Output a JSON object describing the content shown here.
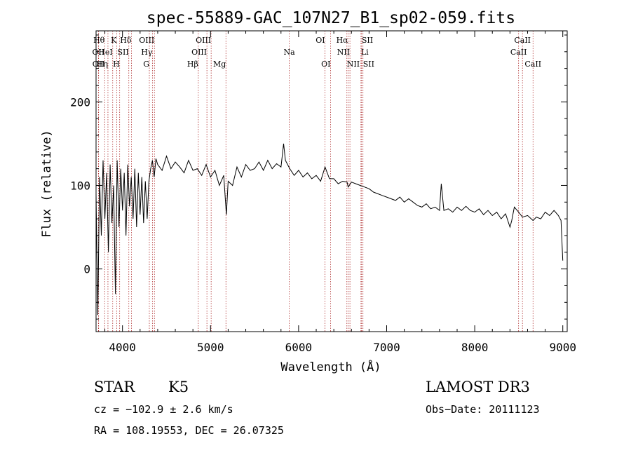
{
  "chart_data": {
    "type": "line",
    "title": "spec-55889-GAC_107N27_B1_sp02-059.fits",
    "xlabel": "Wavelength (Å)",
    "ylabel": "Flux (relative)",
    "xlim": [
      3700,
      9050
    ],
    "ylim": [
      -75,
      285
    ],
    "x_ticks": [
      4000,
      5000,
      6000,
      7000,
      8000,
      9000
    ],
    "x_tick_labels": [
      "4000",
      "5000",
      "6000",
      "7000",
      "8000",
      "9000"
    ],
    "y_ticks": [
      0,
      100,
      200
    ],
    "y_tick_labels": [
      "0",
      "100",
      "200"
    ],
    "series": [
      {
        "name": "flux",
        "x": [
          3700,
          3720,
          3740,
          3760,
          3780,
          3800,
          3820,
          3840,
          3860,
          3880,
          3900,
          3920,
          3940,
          3960,
          3980,
          4000,
          4020,
          4040,
          4060,
          4080,
          4100,
          4120,
          4140,
          4160,
          4180,
          4200,
          4220,
          4240,
          4260,
          4280,
          4300,
          4320,
          4340,
          4360,
          4380,
          4400,
          4450,
          4500,
          4550,
          4600,
          4650,
          4700,
          4750,
          4800,
          4850,
          4900,
          4950,
          5000,
          5050,
          5100,
          5150,
          5180,
          5200,
          5250,
          5300,
          5350,
          5400,
          5450,
          5500,
          5550,
          5600,
          5650,
          5700,
          5750,
          5800,
          5830,
          5850,
          5900,
          5950,
          6000,
          6050,
          6100,
          6150,
          6200,
          6250,
          6300,
          6350,
          6400,
          6450,
          6500,
          6550,
          6563,
          6600,
          6650,
          6700,
          6750,
          6800,
          6850,
          6900,
          6950,
          7000,
          7050,
          7100,
          7150,
          7200,
          7250,
          7300,
          7350,
          7400,
          7450,
          7500,
          7550,
          7600,
          7620,
          7650,
          7700,
          7750,
          7800,
          7850,
          7900,
          7950,
          8000,
          8050,
          8100,
          8150,
          8200,
          8250,
          8300,
          8350,
          8400,
          8420,
          8450,
          8498,
          8542,
          8600,
          8662,
          8700,
          8750,
          8800,
          8850,
          8900,
          8950,
          8980,
          9000
        ],
        "y": [
          90,
          -55,
          110,
          40,
          130,
          60,
          115,
          20,
          125,
          55,
          100,
          -30,
          130,
          50,
          120,
          70,
          115,
          40,
          125,
          75,
          110,
          60,
          120,
          50,
          115,
          65,
          110,
          55,
          105,
          60,
          105,
          120,
          130,
          110,
          132,
          125,
          118,
          135,
          120,
          128,
          122,
          115,
          130,
          118,
          120,
          112,
          125,
          110,
          118,
          100,
          112,
          65,
          105,
          100,
          122,
          110,
          125,
          118,
          120,
          128,
          118,
          130,
          120,
          126,
          122,
          150,
          130,
          120,
          112,
          118,
          110,
          115,
          108,
          112,
          105,
          122,
          108,
          108,
          102,
          105,
          104,
          98,
          104,
          102,
          100,
          98,
          96,
          92,
          90,
          88,
          86,
          84,
          82,
          86,
          80,
          84,
          80,
          76,
          74,
          78,
          72,
          74,
          70,
          102,
          70,
          72,
          68,
          74,
          70,
          75,
          70,
          68,
          72,
          65,
          70,
          64,
          68,
          60,
          66,
          50,
          58,
          74,
          68,
          62,
          64,
          58,
          62,
          60,
          68,
          64,
          70,
          64,
          58,
          10
        ]
      }
    ],
    "line_markers": [
      {
        "label": "Hθ",
        "wavelength": 3798,
        "row": 1,
        "ha": "right"
      },
      {
        "label": "OII",
        "wavelength": 3727,
        "row": 2,
        "ha": "center"
      },
      {
        "label": "OII",
        "wavelength": 3729,
        "row": 3,
        "ha": "center"
      },
      {
        "label": "K",
        "wavelength": 3934,
        "row": 1,
        "ha": "right"
      },
      {
        "label": "HeI",
        "wavelength": 3889,
        "row": 2,
        "ha": "right"
      },
      {
        "label": "Hη",
        "wavelength": 3835,
        "row": 3,
        "ha": "right"
      },
      {
        "label": "Hδ",
        "wavelength": 4102,
        "row": 1,
        "ha": "right"
      },
      {
        "label": "SII",
        "wavelength": 4072,
        "row": 2,
        "ha": "right"
      },
      {
        "label": "H",
        "wavelength": 3968,
        "row": 3,
        "ha": "right"
      },
      {
        "label": "OIII",
        "wavelength": 4363,
        "row": 1,
        "ha": "right"
      },
      {
        "label": "Hγ",
        "wavelength": 4340,
        "row": 2,
        "ha": "right"
      },
      {
        "label": "G",
        "wavelength": 4305,
        "row": 3,
        "ha": "right"
      },
      {
        "label": "OIII",
        "wavelength": 5007,
        "row": 1,
        "ha": "right"
      },
      {
        "label": "OIII",
        "wavelength": 4959,
        "row": 2,
        "ha": "right"
      },
      {
        "label": "Hβ",
        "wavelength": 4861,
        "row": 3,
        "ha": "right"
      },
      {
        "label": "Mg",
        "wavelength": 5175,
        "row": 3,
        "ha": "right"
      },
      {
        "label": "Na",
        "wavelength": 5894,
        "row": 2,
        "ha": "center"
      },
      {
        "label": "OI",
        "wavelength": 6300,
        "row": 1,
        "ha": "right"
      },
      {
        "label": "OI",
        "wavelength": 6363,
        "row": 3,
        "ha": "right"
      },
      {
        "label": "Hα",
        "wavelength": 6563,
        "row": 1,
        "ha": "right"
      },
      {
        "label": "NII",
        "wavelength": 6583,
        "row": 2,
        "ha": "right"
      },
      {
        "label": "NII",
        "wavelength": 6548,
        "row": 3,
        "ha": "left"
      },
      {
        "label": "SII",
        "wavelength": 6716,
        "row": 1,
        "ha": "left"
      },
      {
        "label": "Li",
        "wavelength": 6708,
        "row": 2,
        "ha": "left"
      },
      {
        "label": "SII",
        "wavelength": 6731,
        "row": 3,
        "ha": "left"
      },
      {
        "label": "CaII",
        "wavelength": 8542,
        "row": 1,
        "ha": "center"
      },
      {
        "label": "CaII",
        "wavelength": 8498,
        "row": 2,
        "ha": "center"
      },
      {
        "label": "CaII",
        "wavelength": 8662,
        "row": 3,
        "ha": "center"
      }
    ],
    "marker_color": "#b03030"
  },
  "info": {
    "object_class": "STAR",
    "subclass": "K5",
    "survey": "LAMOST DR3",
    "cz": "cz = −102.9 ± 2.6 km/s",
    "obs_date": "Obs−Date: 20111123",
    "coords": "RA = 108.19553, DEC =  26.07325"
  }
}
